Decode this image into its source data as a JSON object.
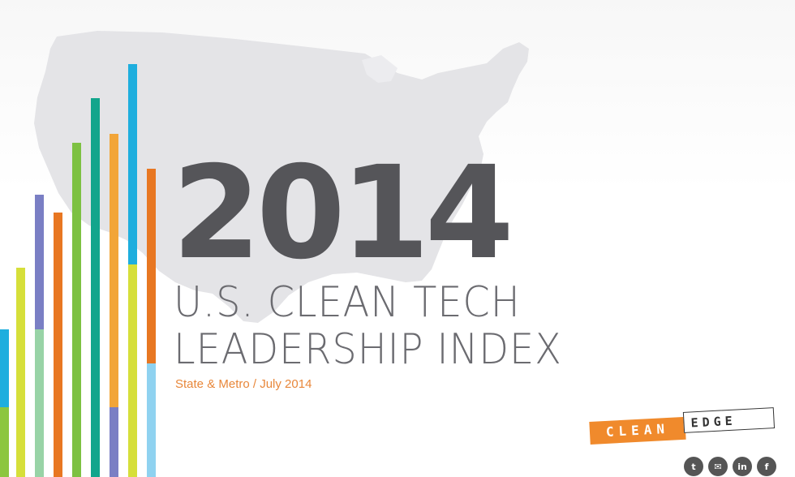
{
  "header": {
    "year": "2014",
    "title_line1": "U.S. CLEAN TECH",
    "title_line2": "LEADERSHIP INDEX",
    "subtitle": "State & Metro / July 2014"
  },
  "logo": {
    "part1": "CLEAN",
    "part2": "EDGE"
  },
  "social": [
    {
      "name": "twitter-icon",
      "glyph": "t"
    },
    {
      "name": "email-icon",
      "glyph": "✉"
    },
    {
      "name": "linkedin-icon",
      "glyph": "in"
    },
    {
      "name": "facebook-icon",
      "glyph": "f"
    }
  ],
  "colors": {
    "year": "#555559",
    "title": "#6b6b70",
    "accent": "#e8873a",
    "map": "#e3e3e6"
  }
}
